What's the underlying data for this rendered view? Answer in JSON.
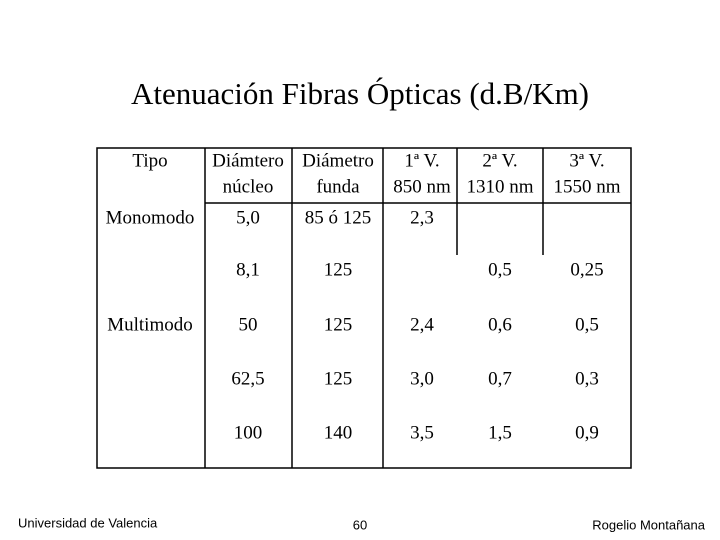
{
  "title": "Atenuación Fibras Ópticas (d.B/Km)",
  "table": {
    "header": [
      [
        "Tipo"
      ],
      [
        "Diámtero",
        "núcleo"
      ],
      [
        "Diámetro",
        "funda"
      ],
      [
        "1ª V.",
        "850 nm"
      ],
      [
        "2ª V.",
        "1310 nm"
      ],
      [
        "3ª V.",
        "1550 nm"
      ]
    ],
    "rows": [
      [
        "Monomodo",
        "5,0",
        "85 ó 125",
        "2,3",
        null,
        null
      ],
      [
        null,
        "8,1",
        "125",
        null,
        "0,5",
        "0,25"
      ],
      [
        "Multimodo",
        "50",
        "125",
        "2,4",
        "0,6",
        "0,5"
      ],
      [
        null,
        "62,5",
        "125",
        "3,0",
        "0,7",
        "0,3"
      ],
      [
        null,
        "100",
        "140",
        "3,5",
        "1,5",
        "0,9"
      ]
    ]
  },
  "footer": {
    "left": "Universidad de Valencia",
    "center": "60",
    "right": "Rogelio Montañana"
  }
}
